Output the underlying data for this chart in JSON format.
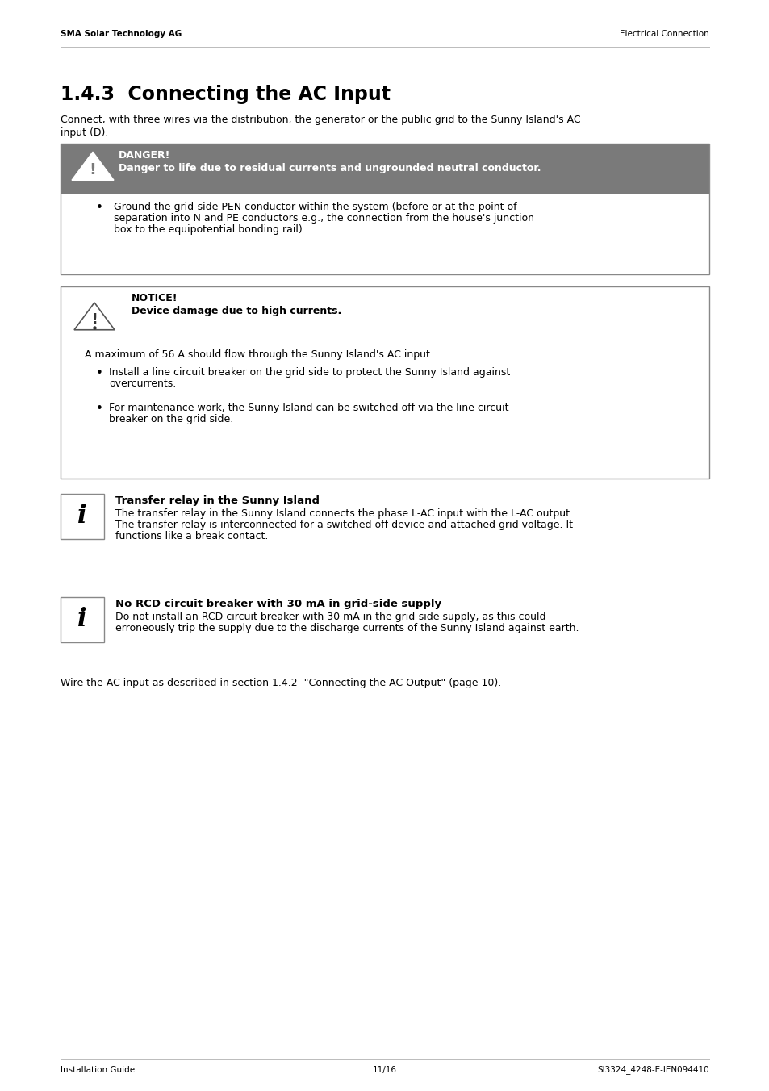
{
  "page_bg": "#ffffff",
  "header_left": "SMA Solar Technology AG",
  "header_right": "Electrical Connection",
  "footer_left": "Installation Guide",
  "footer_center": "11/16",
  "footer_right": "SI3324_4248-E-IEN094410",
  "section_title": "1.4.3  Connecting the AC Input",
  "intro_line1": "Connect, with three wires via the distribution, the generator or the public grid to the Sunny Island's AC",
  "intro_line2": "input (D).",
  "danger_title": "DANGER!",
  "danger_subtitle": "Danger to life due to residual currents and ungrounded neutral conductor.",
  "danger_bullet_line1": "Ground the grid-side PEN conductor within the system (before or at the point of",
  "danger_bullet_line2": "separation into N and PE conductors e.g., the connection from the house's junction",
  "danger_bullet_line3": "box to the equipotential bonding rail).",
  "notice_title": "NOTICE!",
  "notice_subtitle": "Device damage due to high currents.",
  "notice_body": "A maximum of 56 A should flow through the Sunny Island's AC input.",
  "notice_b1_line1": "Install a line circuit breaker on the grid side to protect the Sunny Island against",
  "notice_b1_line2": "overcurrents.",
  "notice_b2_line1": "For maintenance work, the Sunny Island can be switched off via the line circuit",
  "notice_b2_line2": "breaker on the grid side.",
  "info1_title": "Transfer relay in the Sunny Island",
  "info1_line1": "The transfer relay in the Sunny Island connects the phase L-AC input with the L-AC output.",
  "info1_line2": "The transfer relay is interconnected for a switched off device and attached grid voltage. It",
  "info1_line3": "functions like a break contact.",
  "info2_title": "No RCD circuit breaker with 30 mA in grid-side supply",
  "info2_line1": "Do not install an RCD circuit breaker with 30 mA in the grid-side supply, as this could",
  "info2_line2": "erroneously trip the supply due to the discharge currents of the Sunny Island against earth.",
  "closing_text": "Wire the AC input as described in section 1.4.2  \"Connecting the AC Output\" (page 10).",
  "danger_gray": "#7a7a7a",
  "box_border": "#888888",
  "notice_border": "#888888"
}
